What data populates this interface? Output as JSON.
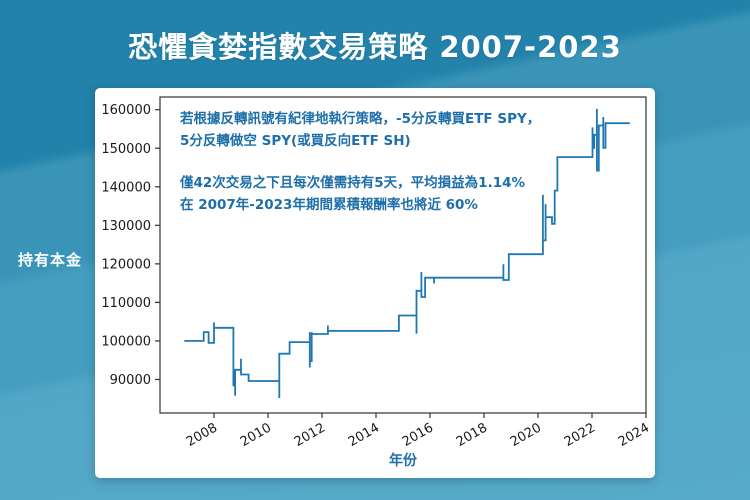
{
  "header": {
    "title": "恐懼貪婪指數交易策略 2007-2023"
  },
  "side_labels": {
    "y_axis_external": "持有本金"
  },
  "colors": {
    "background_top": "#2282aa",
    "background_bottom": "#57abc9",
    "card": "#ffffff",
    "title_text": "#ffffff",
    "line": "#1f77b4",
    "annotation_text": "#1e6fa9",
    "axis_text": "#1a1a1a",
    "spine": "#333333"
  },
  "chart_data": {
    "type": "line",
    "title": "恐懼貪婪指數交易策略 2007-2023",
    "xlabel": "年份",
    "ylabel": "持有本金",
    "xlim": [
      2006,
      2024
    ],
    "ylim": [
      81300,
      163300
    ],
    "x_ticks": [
      2008,
      2010,
      2012,
      2014,
      2016,
      2018,
      2020,
      2022,
      2024
    ],
    "y_ticks": [
      90000,
      100000,
      110000,
      120000,
      130000,
      140000,
      150000,
      160000
    ],
    "grid": false,
    "legend": "none",
    "x_tick_rotation": -30,
    "series": [
      {
        "name": "持有本金",
        "step": "post",
        "points": [
          [
            2006.9,
            100000
          ],
          [
            2007.62,
            102300
          ],
          [
            2007.8,
            99500
          ],
          [
            2008.0,
            104800
          ],
          [
            2008.0,
            103400
          ],
          [
            2008.72,
            96500
          ],
          [
            2008.72,
            88500
          ],
          [
            2008.78,
            85800
          ],
          [
            2008.78,
            92500
          ],
          [
            2009.0,
            95400
          ],
          [
            2009.0,
            91300
          ],
          [
            2009.28,
            89600
          ],
          [
            2010.42,
            85200
          ],
          [
            2010.42,
            96700
          ],
          [
            2010.8,
            99700
          ],
          [
            2011.55,
            93100
          ],
          [
            2011.55,
            102000
          ],
          [
            2011.62,
            94500
          ],
          [
            2011.62,
            101800
          ],
          [
            2012.22,
            104000
          ],
          [
            2012.22,
            102600
          ],
          [
            2014.85,
            106600
          ],
          [
            2015.5,
            101900
          ],
          [
            2015.5,
            113000
          ],
          [
            2015.68,
            117900
          ],
          [
            2015.68,
            111400
          ],
          [
            2015.82,
            116400
          ],
          [
            2016.15,
            114900
          ],
          [
            2016.15,
            116400
          ],
          [
            2018.72,
            119900
          ],
          [
            2018.72,
            115800
          ],
          [
            2018.92,
            122500
          ],
          [
            2020.18,
            137900
          ],
          [
            2020.18,
            126100
          ],
          [
            2020.28,
            135500
          ],
          [
            2020.28,
            132100
          ],
          [
            2020.52,
            130400
          ],
          [
            2020.62,
            139000
          ],
          [
            2020.72,
            147700
          ],
          [
            2022.02,
            155400
          ],
          [
            2022.02,
            150100
          ],
          [
            2022.08,
            153500
          ],
          [
            2022.18,
            160200
          ],
          [
            2022.18,
            144200
          ],
          [
            2022.25,
            155900
          ],
          [
            2022.42,
            158100
          ],
          [
            2022.42,
            150100
          ],
          [
            2022.5,
            156500
          ],
          [
            2023.4,
            156500
          ]
        ]
      }
    ],
    "annotations": [
      "若根據反轉訊號有紀律地執行策略，-5分反轉買ETF SPY，",
      "5分反轉做空 SPY(或買反向ETF SH)",
      "僅42次交易之下且每次僅需持有5天，平均損益為1.14%",
      "在 2007年-2023年期間累積報酬率也將近 60%"
    ]
  }
}
